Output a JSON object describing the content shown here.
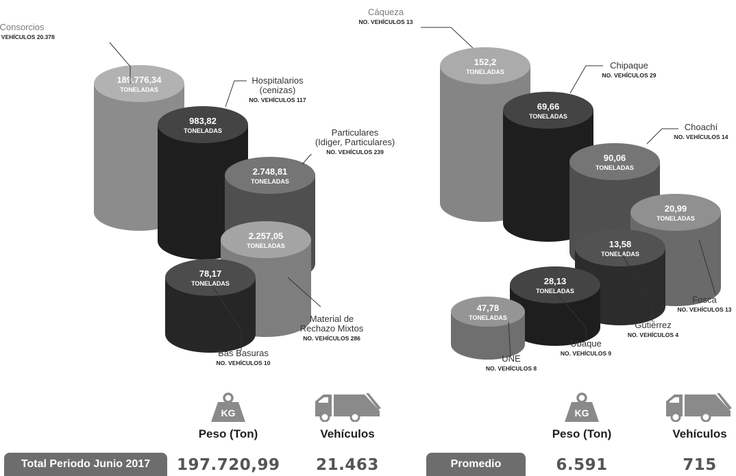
{
  "chart_data": [
    {
      "type": "bar",
      "unit_label": "TONELADAS",
      "vehicle_prefix": "NO. VEHÍCULOS",
      "items": [
        {
          "name_lines": [
            "Consorcios"
          ],
          "value": "189.776,34",
          "vehicles": "20.378",
          "color": "#8c8c8c"
        },
        {
          "name_lines": [
            "Hospitalarios",
            "(cenizas)"
          ],
          "value": "983,82",
          "vehicles": "117",
          "color": "#1e1e1e"
        },
        {
          "name_lines": [
            "Particulares",
            "(Idiger, Particulares)"
          ],
          "value": "2.748,81",
          "vehicles": "239",
          "color": "#4f4f4f"
        },
        {
          "name_lines": [
            "Material de",
            "Rechazo Mixtos"
          ],
          "value": "2.257,05",
          "vehicles": "286",
          "color": "#7e7e7e"
        },
        {
          "name_lines": [
            "Bas Basuras"
          ],
          "value": "78,17",
          "vehicles": "10",
          "color": "#262626"
        }
      ]
    },
    {
      "type": "bar",
      "unit_label": "TONELADAS",
      "vehicle_prefix": "NO. VEHÍCULOS",
      "items": [
        {
          "name_lines": [
            "Cáqueza"
          ],
          "value": "152,2",
          "vehicles": "13",
          "color": "#858585"
        },
        {
          "name_lines": [
            "Chipaque"
          ],
          "value": "69,66",
          "vehicles": "29",
          "color": "#1e1e1e"
        },
        {
          "name_lines": [
            "Choachí"
          ],
          "value": "90,06",
          "vehicles": "14",
          "color": "#4f4f4f"
        },
        {
          "name_lines": [
            "Fosca"
          ],
          "value": "20,99",
          "vehicles": "13",
          "color": "#6a6a6a"
        },
        {
          "name_lines": [
            "Gutiérrez"
          ],
          "value": "13,58",
          "vehicles": "4",
          "color": "#2c2c2c"
        },
        {
          "name_lines": [
            "Ubaque"
          ],
          "value": "28,13",
          "vehicles": "9",
          "color": "#1e1e1e"
        },
        {
          "name_lines": [
            "UNE"
          ],
          "value": "47,78",
          "vehicles": "8",
          "color": "#6f6f6f"
        }
      ]
    }
  ],
  "icons": {
    "weight_icon": "weight-kg-icon",
    "weight_text": "KG",
    "truck_icon": "garbage-truck-icon"
  },
  "labels": {
    "peso": "Peso (Ton)",
    "vehiculos": "Vehículos"
  },
  "footer": {
    "total_label": "Total Periodo Junio 2017",
    "total_peso": "197.720,99",
    "total_vehiculos": "21.463",
    "avg_label": "Promedio",
    "avg_peso": "6.591",
    "avg_vehiculos": "715"
  },
  "colors": {
    "pill": "#6d6d6d",
    "icon": "#8a8a8a",
    "leader": "#333333"
  }
}
